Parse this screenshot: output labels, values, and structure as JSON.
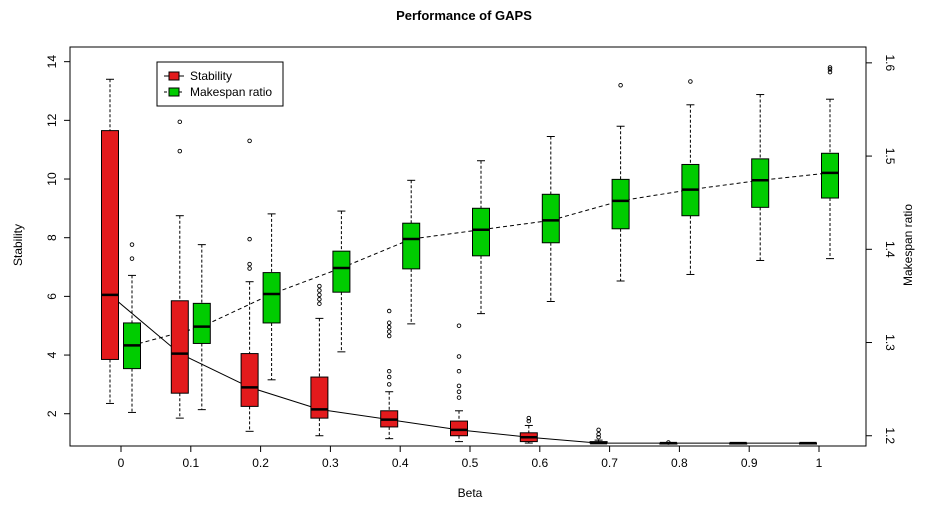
{
  "chart_data": {
    "type": "box",
    "title": "Performance of GAPS",
    "xlabel": "Beta",
    "ylabel": "Stability",
    "y2label": "Makespan ratio",
    "categories": [
      "0",
      "0.1",
      "0.2",
      "0.3",
      "0.4",
      "0.5",
      "0.6",
      "0.7",
      "0.8",
      "0.9",
      "1"
    ],
    "y_ticks": [
      2,
      4,
      6,
      8,
      10,
      12,
      14
    ],
    "y2_ticks": [
      "1.2",
      "1.3",
      "1.4",
      "1.5",
      "1.6"
    ],
    "ylim": [
      0.9,
      14.5
    ],
    "y2lim": [
      1.189,
      1.617
    ],
    "legend_position": "top-left",
    "series": [
      {
        "name": "Stability",
        "axis": "left",
        "color": "#e31a1c",
        "line_style": "solid",
        "boxes": [
          {
            "whisker_low": 2.35,
            "q1": 3.85,
            "median": 6.05,
            "q3": 11.65,
            "whisker_high": 13.4,
            "outliers": []
          },
          {
            "whisker_low": 1.85,
            "q1": 2.7,
            "median": 4.05,
            "q3": 5.85,
            "whisker_high": 8.75,
            "outliers": [
              10.95,
              11.95
            ]
          },
          {
            "whisker_low": 1.4,
            "q1": 2.25,
            "median": 2.9,
            "q3": 4.05,
            "whisker_high": 6.5,
            "outliers": [
              6.95,
              7.1,
              7.95,
              11.3
            ]
          },
          {
            "whisker_low": 1.25,
            "q1": 1.85,
            "median": 2.15,
            "q3": 3.25,
            "whisker_high": 5.25,
            "outliers": [
              5.75,
              5.9,
              6.05,
              6.2,
              6.35
            ]
          },
          {
            "whisker_low": 1.15,
            "q1": 1.55,
            "median": 1.8,
            "q3": 2.1,
            "whisker_high": 2.75,
            "outliers": [
              3.0,
              3.25,
              3.45,
              4.65,
              4.8,
              4.95,
              5.1,
              5.5
            ]
          },
          {
            "whisker_low": 1.05,
            "q1": 1.25,
            "median": 1.45,
            "q3": 1.75,
            "whisker_high": 2.1,
            "outliers": [
              2.55,
              2.75,
              2.95,
              3.45,
              3.95,
              5.0
            ]
          },
          {
            "whisker_low": 1.0,
            "q1": 1.05,
            "median": 1.2,
            "q3": 1.35,
            "whisker_high": 1.6,
            "outliers": [
              1.75,
              1.85
            ]
          },
          {
            "whisker_low": 1.0,
            "q1": 1.0,
            "median": 1.0,
            "q3": 1.05,
            "whisker_high": 1.1,
            "outliers": [
              1.2,
              1.3,
              1.45
            ]
          },
          {
            "whisker_low": 1.0,
            "q1": 1.0,
            "median": 1.0,
            "q3": 1.0,
            "whisker_high": 1.0,
            "outliers": [
              1.02
            ]
          },
          {
            "whisker_low": 1.0,
            "q1": 1.0,
            "median": 1.0,
            "q3": 1.0,
            "whisker_high": 1.0,
            "outliers": []
          },
          {
            "whisker_low": 1.0,
            "q1": 1.0,
            "median": 1.0,
            "q3": 1.0,
            "whisker_high": 1.0,
            "outliers": []
          }
        ]
      },
      {
        "name": "Makespan ratio",
        "axis": "right",
        "color": "#00cc00",
        "line_style": "dashed",
        "boxes": [
          {
            "whisker_low": 1.225,
            "q1": 1.272,
            "median": 1.297,
            "q3": 1.321,
            "whisker_high": 1.372,
            "outliers": [
              1.39,
              1.405
            ]
          },
          {
            "whisker_low": 1.228,
            "q1": 1.299,
            "median": 1.317,
            "q3": 1.342,
            "whisker_high": 1.405,
            "outliers": []
          },
          {
            "whisker_low": 1.26,
            "q1": 1.321,
            "median": 1.352,
            "q3": 1.375,
            "whisker_high": 1.438,
            "outliers": []
          },
          {
            "whisker_low": 1.29,
            "q1": 1.354,
            "median": 1.38,
            "q3": 1.398,
            "whisker_high": 1.441,
            "outliers": []
          },
          {
            "whisker_low": 1.32,
            "q1": 1.379,
            "median": 1.411,
            "q3": 1.428,
            "whisker_high": 1.474,
            "outliers": []
          },
          {
            "whisker_low": 1.331,
            "q1": 1.393,
            "median": 1.421,
            "q3": 1.444,
            "whisker_high": 1.495,
            "outliers": []
          },
          {
            "whisker_low": 1.344,
            "q1": 1.407,
            "median": 1.431,
            "q3": 1.459,
            "whisker_high": 1.521,
            "outliers": []
          },
          {
            "whisker_low": 1.366,
            "q1": 1.422,
            "median": 1.452,
            "q3": 1.475,
            "whisker_high": 1.532,
            "outliers": [
              1.576
            ]
          },
          {
            "whisker_low": 1.373,
            "q1": 1.436,
            "median": 1.464,
            "q3": 1.491,
            "whisker_high": 1.555,
            "outliers": [
              1.58
            ]
          },
          {
            "whisker_low": 1.388,
            "q1": 1.445,
            "median": 1.474,
            "q3": 1.497,
            "whisker_high": 1.566,
            "outliers": []
          },
          {
            "whisker_low": 1.39,
            "q1": 1.455,
            "median": 1.482,
            "q3": 1.503,
            "whisker_high": 1.561,
            "outliers": [
              1.59,
              1.593,
              1.595
            ]
          }
        ]
      }
    ]
  }
}
